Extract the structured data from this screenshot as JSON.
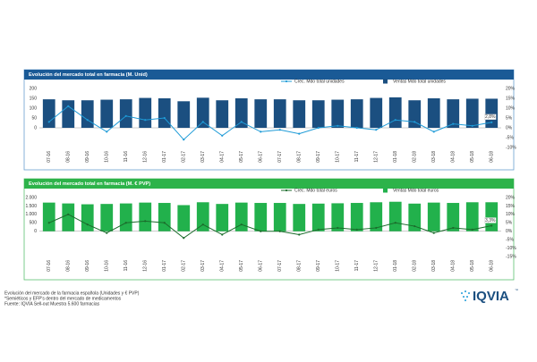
{
  "chart_data": [
    {
      "type": "combo",
      "title": "Evolución del mercado total en farmacia (M. Unid)",
      "categories": [
        "07-16",
        "08-16",
        "09-16",
        "10-16",
        "11-16",
        "12-16",
        "01-17",
        "02-17",
        "03-17",
        "04-17",
        "05-17",
        "06-17",
        "07-17",
        "08-17",
        "09-17",
        "10-17",
        "11-17",
        "12-17",
        "01-18",
        "02-18",
        "03-18",
        "04-18",
        "05-18",
        "06-18"
      ],
      "series": [
        {
          "name": "Crec. Mdo total unidades",
          "type": "line",
          "axis": "y2",
          "color": "#1e9bd7",
          "values": [
            3,
            11,
            4,
            -2,
            6,
            4,
            5,
            -6,
            3,
            -4,
            3,
            -2,
            -1,
            -3,
            0,
            1,
            0,
            -1,
            4,
            3,
            -2,
            2,
            1,
            2.8
          ],
          "value_labels": [
            null,
            null,
            null,
            null,
            null,
            null,
            null,
            null,
            null,
            null,
            null,
            null,
            null,
            null,
            null,
            null,
            null,
            null,
            null,
            null,
            null,
            null,
            null,
            "2,8%"
          ]
        },
        {
          "name": "Ventas Mdo total unidades",
          "type": "bar",
          "color": "#1b4f80",
          "values": [
            145,
            140,
            140,
            143,
            145,
            152,
            150,
            135,
            153,
            140,
            150,
            145,
            145,
            140,
            140,
            143,
            145,
            152,
            155,
            140,
            150,
            145,
            148,
            148
          ]
        }
      ],
      "ylim": [
        -100,
        200
      ],
      "yticks": [
        0,
        50,
        100,
        150,
        200
      ],
      "y2lim": [
        -10,
        20
      ],
      "y2ticks": [
        {
          "value": -10,
          "label": "-10%"
        },
        {
          "value": -5,
          "label": "-5%"
        },
        {
          "value": 0,
          "label": "0%"
        },
        {
          "value": 5,
          "label": "5%"
        },
        {
          "value": 10,
          "label": "10%"
        },
        {
          "value": 15,
          "label": "15%"
        },
        {
          "value": 20,
          "label": "20%"
        }
      ]
    },
    {
      "type": "combo",
      "title": "Evolución del mercado total en farmacia (M. € PVP)",
      "categories": [
        "07-16",
        "08-16",
        "09-16",
        "10-16",
        "11-16",
        "12-16",
        "01-17",
        "02-17",
        "03-17",
        "04-17",
        "05-17",
        "06-17",
        "07-17",
        "08-17",
        "09-17",
        "10-17",
        "11-17",
        "12-17",
        "01-18",
        "02-18",
        "03-18",
        "04-18",
        "05-18",
        "06-18"
      ],
      "series": [
        {
          "name": "Crec. Mdo total euros",
          "type": "line",
          "axis": "y2",
          "color": "#1b6b2b",
          "values": [
            5,
            10,
            4,
            -1,
            5,
            6,
            5,
            -4,
            4,
            -2,
            4,
            0,
            0,
            -2,
            1,
            2,
            1,
            2,
            5,
            3,
            -1,
            2,
            1,
            3.3
          ],
          "value_labels": [
            null,
            null,
            null,
            null,
            null,
            null,
            null,
            null,
            null,
            null,
            null,
            null,
            null,
            null,
            null,
            null,
            null,
            null,
            null,
            null,
            null,
            null,
            null,
            "3,3%"
          ]
        },
        {
          "name": "Ventas Mdo total euros",
          "type": "bar",
          "color": "#22b14c",
          "values": [
            1700,
            1650,
            1600,
            1620,
            1650,
            1700,
            1680,
            1550,
            1720,
            1620,
            1700,
            1680,
            1680,
            1620,
            1640,
            1660,
            1680,
            1720,
            1750,
            1640,
            1700,
            1680,
            1720,
            1720
          ]
        }
      ],
      "ylim": [
        -1500,
        2000
      ],
      "yticks": [
        0,
        500,
        {
          "value": 1000,
          "label": "1.000"
        },
        {
          "value": 1500,
          "label": "1.500"
        },
        {
          "value": 2000,
          "label": "2.000"
        }
      ],
      "y2lim": [
        -15,
        20
      ],
      "y2ticks": [
        {
          "value": -15,
          "label": "-15%"
        },
        {
          "value": -10,
          "label": "-10%"
        },
        {
          "value": -5,
          "label": "-5%"
        },
        {
          "value": 0,
          "label": "0%"
        },
        {
          "value": 5,
          "label": "5%"
        },
        {
          "value": 10,
          "label": "10%"
        },
        {
          "value": 15,
          "label": "15%"
        },
        {
          "value": 20,
          "label": "20%"
        }
      ]
    }
  ],
  "footer": {
    "lines": [
      "Evolución del mercado de la farmacia española (Unidades y € PVP)",
      "*Semiéticos y EFP's dentro del mercado de medicamentos",
      "Fuente: IQVIA Sell-out Muestra 5.600 farmacias"
    ]
  },
  "logo": {
    "text": "IQVIA",
    "mark": "™"
  }
}
